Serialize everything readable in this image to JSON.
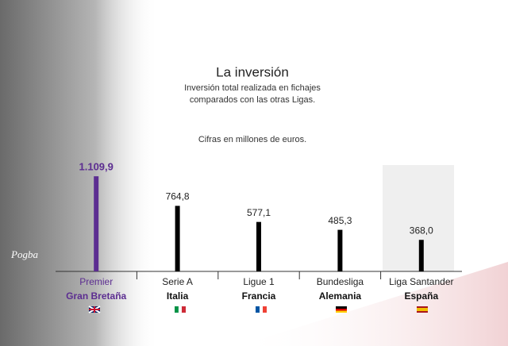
{
  "image_caption": "Pogba",
  "chart_data": {
    "type": "bar",
    "title": "La inversión",
    "subtitle": "Inversión total realizada en fichajes comparados con las otras Ligas.",
    "note": "Cifras en millones de euros.",
    "categories": [
      "Premier",
      "Serie A",
      "Ligue 1",
      "Bundesliga",
      "Liga Santander"
    ],
    "countries": [
      "Gran Bretaña",
      "Italia",
      "Francia",
      "Alemania",
      "España"
    ],
    "values": [
      1109.9,
      764.8,
      577.1,
      485.3,
      368.0
    ],
    "value_labels": [
      "1.109,9",
      "764,8",
      "577,1",
      "485,3",
      "368,0"
    ],
    "colors": [
      "#5c2d91",
      "#000000",
      "#000000",
      "#000000",
      "#000000"
    ],
    "ylim": [
      0,
      1250
    ]
  }
}
